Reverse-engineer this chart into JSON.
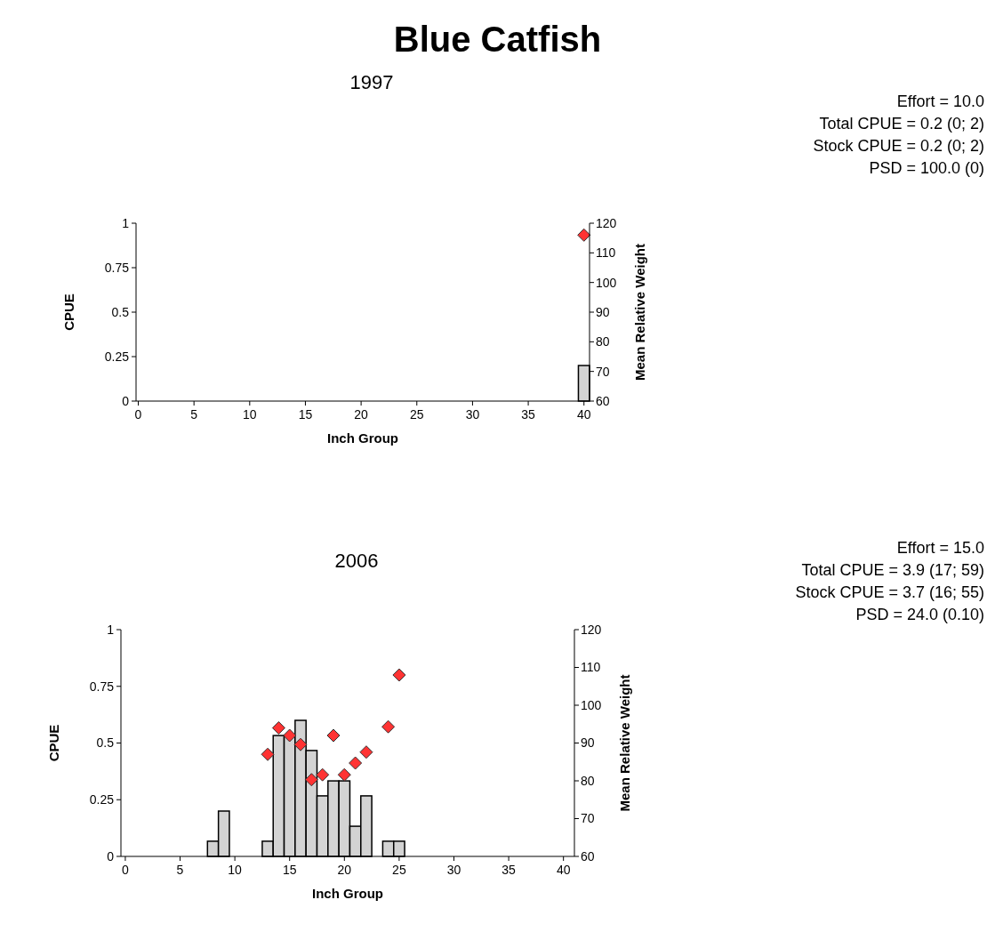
{
  "chart_data": [
    {
      "type": "other",
      "title": "Blue Catfish"
    },
    {
      "type": "bar",
      "title": "1997",
      "xlabel": "Inch Group",
      "ylabel": "CPUE",
      "y2label": "Mean Relative Weight",
      "xlim": [
        -0.2,
        40.5
      ],
      "xticks": [
        0,
        5,
        10,
        15,
        20,
        25,
        30,
        35,
        40
      ],
      "ylim": [
        0,
        1
      ],
      "yticks": [
        0,
        0.25,
        0.5,
        0.75,
        1
      ],
      "y2lim": [
        60,
        120
      ],
      "y2ticks": [
        60,
        70,
        80,
        90,
        100,
        110,
        120
      ],
      "marker": "diamond",
      "series": [
        {
          "type": "bar",
          "color": "#d3d3d3",
          "x": [
            40
          ],
          "values": [
            0.2
          ]
        },
        {
          "type": "scatter",
          "axis": "y2",
          "color": "#ff3333",
          "x": [
            40
          ],
          "values": [
            116
          ]
        }
      ],
      "annotations": [
        "Effort = 10.0",
        "Total CPUE = 0.2 (0; 2)",
        "Stock CPUE = 0.2 (0; 2)",
        "PSD = 100.0 (0)"
      ]
    },
    {
      "type": "bar",
      "title": "2006",
      "xlabel": "Inch Group",
      "ylabel": "CPUE",
      "y2label": "Mean Relative Weight",
      "xlim": [
        -0.4,
        41
      ],
      "xticks": [
        0,
        5,
        10,
        15,
        20,
        25,
        30,
        35,
        40
      ],
      "ylim": [
        0,
        1
      ],
      "yticks": [
        0,
        0.25,
        0.5,
        0.75,
        1
      ],
      "y2lim": [
        60,
        120
      ],
      "y2ticks": [
        60,
        70,
        80,
        90,
        100,
        110,
        120
      ],
      "marker": "diamond",
      "series": [
        {
          "type": "bar",
          "color": "#d3d3d3",
          "x": [
            8,
            9,
            13,
            14,
            15,
            16,
            17,
            18,
            19,
            20,
            21,
            22,
            24,
            25
          ],
          "values": [
            0.067,
            0.2,
            0.067,
            0.533,
            0.533,
            0.6,
            0.467,
            0.267,
            0.333,
            0.333,
            0.133,
            0.267,
            0.067,
            0.067
          ]
        },
        {
          "type": "scatter",
          "axis": "y2",
          "color": "#ff3333",
          "x": [
            13,
            14,
            15,
            16,
            17,
            18,
            19,
            20,
            21,
            22,
            24,
            25
          ],
          "values": [
            87,
            94,
            92,
            89.6,
            80.3,
            81.6,
            92,
            81.6,
            84.7,
            87.6,
            94.3,
            108
          ]
        }
      ],
      "annotations": [
        "Effort = 15.0",
        "Total CPUE = 3.9 (17; 59)",
        "Stock CPUE = 3.7 (16; 55)",
        "PSD = 24.0 (0.10)"
      ]
    }
  ]
}
